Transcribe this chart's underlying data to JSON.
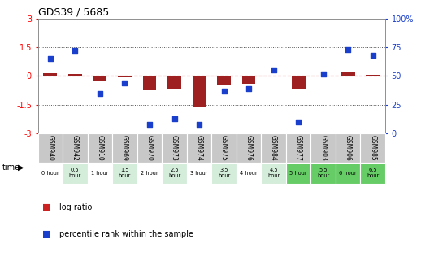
{
  "title": "GDS39 / 5685",
  "samples": [
    "GSM940",
    "GSM942",
    "GSM910",
    "GSM969",
    "GSM970",
    "GSM973",
    "GSM974",
    "GSM975",
    "GSM976",
    "GSM984",
    "GSM977",
    "GSM903",
    "GSM906",
    "GSM985"
  ],
  "times": [
    "0 hour",
    "0.5\nhour",
    "1 hour",
    "1.5\nhour",
    "2 hour",
    "2.5\nhour",
    "3 hour",
    "3.5\nhour",
    "4 hour",
    "4.5\nhour",
    "5 hour",
    "5.5\nhour",
    "6 hour",
    "6.5\nhour"
  ],
  "log_ratio": [
    0.15,
    0.12,
    -0.22,
    -0.05,
    -0.75,
    -0.65,
    -1.65,
    -0.5,
    -0.42,
    -0.02,
    -0.72,
    -0.02,
    0.18,
    0.05
  ],
  "percentile": [
    65,
    72,
    35,
    44,
    8,
    13,
    8,
    37,
    39,
    55,
    10,
    52,
    73,
    68
  ],
  "ylim_left": [
    -3,
    3
  ],
  "ylim_right": [
    0,
    100
  ],
  "yticks_left": [
    -3,
    -1.5,
    0,
    1.5,
    3
  ],
  "yticks_right": [
    0,
    25,
    50,
    75,
    100
  ],
  "bar_color": "#9e2020",
  "dot_color": "#1a3fcc",
  "hline_color": "#cc2222",
  "dotted_line_color": "#555555",
  "bg_color": "#ffffff",
  "gsm_bg": "#c8c8c8",
  "time_bg_colors": [
    "#ffffff",
    "#d4edda",
    "#ffffff",
    "#d4edda",
    "#ffffff",
    "#d4edda",
    "#ffffff",
    "#d4edda",
    "#ffffff",
    "#d4edda",
    "#66cc66",
    "#66cc66",
    "#66cc66",
    "#66cc66"
  ],
  "legend_items": [
    "log ratio",
    "percentile rank within the sample"
  ],
  "legend_colors": [
    "#cc2222",
    "#1a3fcc"
  ]
}
